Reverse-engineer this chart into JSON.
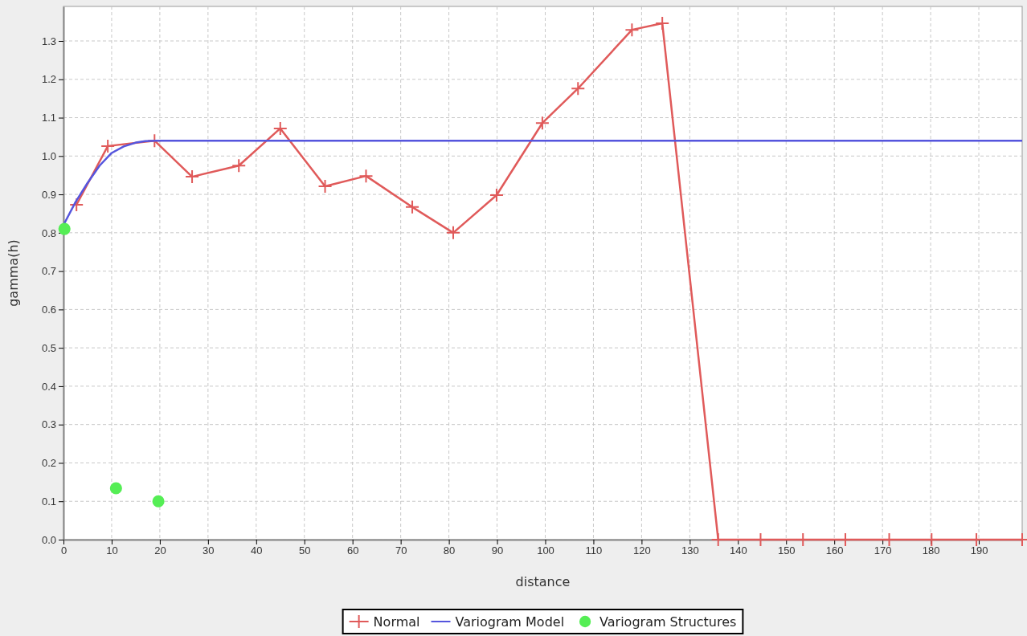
{
  "chart_data": {
    "type": "line",
    "xlabel": "distance",
    "ylabel": "gamma(h)",
    "xlim": [
      0,
      199
    ],
    "ylim": [
      0,
      1.39
    ],
    "xticks": [
      0,
      10,
      20,
      30,
      40,
      50,
      60,
      70,
      80,
      90,
      100,
      110,
      120,
      130,
      140,
      150,
      160,
      170,
      180,
      190
    ],
    "yticks": [
      {
        "value": 0,
        "label": "0.0"
      },
      0.1,
      0.2,
      0.3,
      0.4,
      0.5,
      0.6,
      0.7,
      0.8,
      0.9,
      {
        "value": 1,
        "label": "1.0"
      },
      1.1,
      1.2,
      1.3
    ],
    "grid": true,
    "legend": "bottom",
    "line_style": "solid",
    "series": [
      {
        "name": "Normal",
        "color": "#e05a5a",
        "marker": "cross",
        "x": [
          2.7,
          9.2,
          18.9,
          26.7,
          36.4,
          45,
          54.3,
          62.8,
          72.4,
          80.9,
          89.9,
          99.4,
          106.8,
          118,
          124.3,
          135.9,
          144.7,
          153.5,
          162.3,
          171.4,
          180.2,
          189.5,
          199
        ],
        "values": [
          0.873,
          1.026,
          1.04,
          0.946,
          0.975,
          1.072,
          0.921,
          0.948,
          0.867,
          0.8,
          0.898,
          1.086,
          1.176,
          1.329,
          1.346,
          0,
          0,
          0,
          0,
          0,
          0,
          0,
          0
        ]
      },
      {
        "name": "Variogram Model",
        "color": "#5555dd",
        "marker": "none",
        "x": [
          0,
          2.5,
          5,
          7.5,
          10,
          12.5,
          15,
          17,
          19,
          199
        ],
        "values": [
          0.82,
          0.88,
          0.93,
          0.975,
          1.008,
          1.025,
          1.035,
          1.039,
          1.04,
          1.04
        ]
      },
      {
        "name": "Variogram Structures",
        "type": "scatter",
        "color": "#55ee55",
        "marker": "circle",
        "x": [
          0.2,
          10.9,
          19.7
        ],
        "values": [
          0.81,
          0.134,
          0.1
        ]
      }
    ]
  }
}
